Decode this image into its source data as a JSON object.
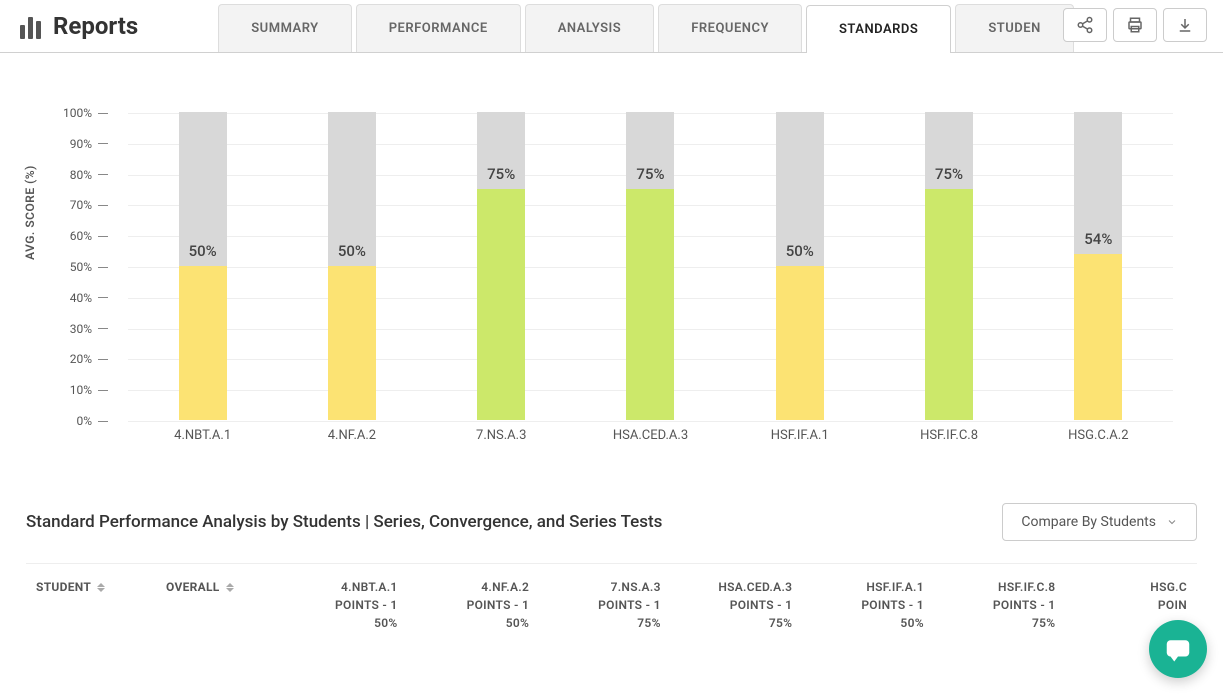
{
  "page": {
    "title": "Reports"
  },
  "tabs": [
    {
      "label": "SUMMARY",
      "active": false
    },
    {
      "label": "PERFORMANCE",
      "active": false
    },
    {
      "label": "ANALYSIS",
      "active": false
    },
    {
      "label": "FREQUENCY",
      "active": false
    },
    {
      "label": "STANDARDS",
      "active": true
    },
    {
      "label": "STUDEN",
      "active": false
    }
  ],
  "chart": {
    "type": "bar",
    "y_axis_label": "AVG. SCORE (%)",
    "ylim": [
      0,
      100
    ],
    "ytick_step": 10,
    "y_ticks": [
      "0%",
      "10%",
      "20%",
      "30%",
      "40%",
      "50%",
      "60%",
      "70%",
      "80%",
      "90%",
      "100%"
    ],
    "background_bar_color": "#d8d8d8",
    "grid_color": "#eeeeee",
    "label_color": "#555555",
    "color_50": "#fce373",
    "color_75": "#cce86a",
    "color_54": "#fce373",
    "bars": [
      {
        "label": "4.NBT.A.1",
        "value": 50,
        "value_label": "50%",
        "color": "#fce373"
      },
      {
        "label": "4.NF.A.2",
        "value": 50,
        "value_label": "50%",
        "color": "#fce373"
      },
      {
        "label": "7.NS.A.3",
        "value": 75,
        "value_label": "75%",
        "color": "#cce86a"
      },
      {
        "label": "HSA.CED.A.3",
        "value": 75,
        "value_label": "75%",
        "color": "#cce86a"
      },
      {
        "label": "HSF.IF.A.1",
        "value": 50,
        "value_label": "50%",
        "color": "#fce373"
      },
      {
        "label": "HSF.IF.C.8",
        "value": 75,
        "value_label": "75%",
        "color": "#cce86a"
      },
      {
        "label": "HSG.C.A.2",
        "value": 54,
        "value_label": "54%",
        "color": "#fce373"
      }
    ]
  },
  "table": {
    "title": "Standard Performance Analysis by Students | Series, Convergence, and Series Tests",
    "compare_label": "Compare By Students",
    "student_header": "STUDENT",
    "overall_header": "OVERALL",
    "columns": [
      {
        "name": "4.NBT.A.1",
        "points": "POINTS - 1",
        "pct": "50%"
      },
      {
        "name": "4.NF.A.2",
        "points": "POINTS - 1",
        "pct": "50%"
      },
      {
        "name": "7.NS.A.3",
        "points": "POINTS - 1",
        "pct": "75%"
      },
      {
        "name": "HSA.CED.A.3",
        "points": "POINTS - 1",
        "pct": "75%"
      },
      {
        "name": "HSF.IF.A.1",
        "points": "POINTS - 1",
        "pct": "50%"
      },
      {
        "name": "HSF.IF.C.8",
        "points": "POINTS - 1",
        "pct": "75%"
      },
      {
        "name": "HSG.C",
        "points": "POIN",
        "pct": ""
      }
    ]
  },
  "colors": {
    "accent": "#1ab394",
    "tab_inactive_bg": "#f3f3f3",
    "tab_active_bg": "#ffffff",
    "border": "#d0d0d0"
  }
}
